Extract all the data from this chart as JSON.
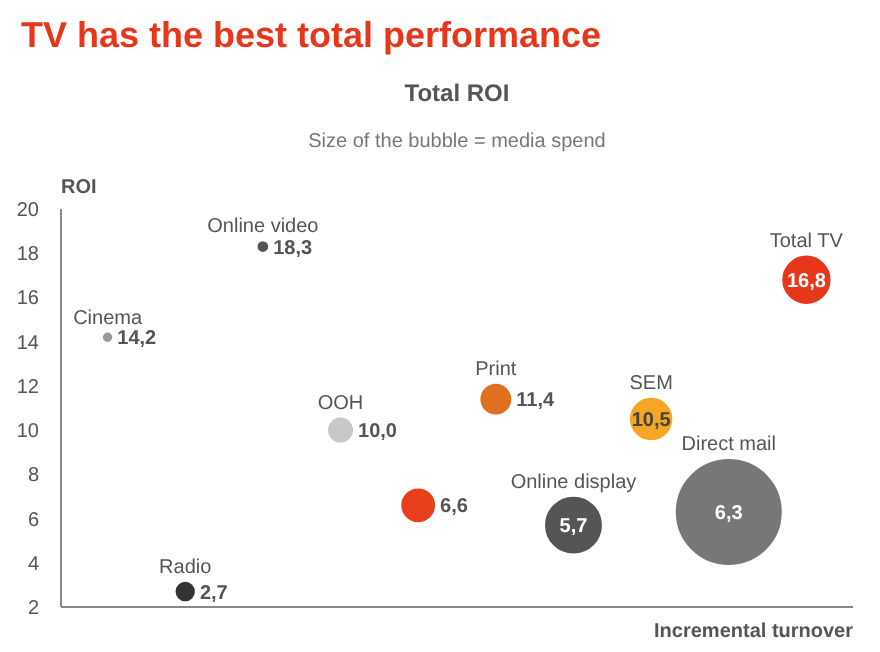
{
  "chart_data": {
    "type": "bubble",
    "title": "TV has the best total performance",
    "subtitle": "Total ROI",
    "annotations": [
      "Size of the bubble = media spend"
    ],
    "ylabel": "ROI",
    "xlabel": "Incremental turnover",
    "categories": [
      null,
      null,
      null,
      null,
      null,
      null,
      null,
      null,
      null,
      null
    ],
    "ylim": [
      2,
      20
    ],
    "yticks": [
      2,
      4,
      6,
      8,
      10,
      12,
      14,
      16,
      18,
      20
    ],
    "tick_labels": "y",
    "grid": false,
    "data_labels": true,
    "series": [
      {
        "name": "Cinema",
        "color": "#999999",
        "values": [
          14.2,
          null,
          null,
          null,
          null,
          null,
          null,
          null,
          null,
          null
        ],
        "sizes": [
          0.005,
          null,
          null,
          null,
          null,
          null,
          null,
          null,
          null,
          null
        ],
        "value_labels": [
          "14,2",
          null,
          null,
          null,
          null,
          null,
          null,
          null,
          null,
          null
        ]
      },
      {
        "name": "Radio",
        "color": "#333333",
        "values": [
          null,
          2.7,
          null,
          null,
          null,
          null,
          null,
          null,
          null,
          null
        ],
        "sizes": [
          null,
          0.028,
          null,
          null,
          null,
          null,
          null,
          null,
          null,
          null
        ],
        "value_labels": [
          null,
          "2,7",
          null,
          null,
          null,
          null,
          null,
          null,
          null,
          null
        ]
      },
      {
        "name": "Online video",
        "color": "#555555",
        "values": [
          null,
          null,
          18.3,
          null,
          null,
          null,
          null,
          null,
          null,
          null
        ],
        "sizes": [
          null,
          null,
          0.007,
          null,
          null,
          null,
          null,
          null,
          null,
          null
        ],
        "value_labels": [
          null,
          null,
          "18,3",
          null,
          null,
          null,
          null,
          null,
          null,
          null
        ]
      },
      {
        "name": "OOH",
        "color": "#c8c8c8",
        "values": [
          null,
          null,
          null,
          10.0,
          null,
          null,
          null,
          null,
          null,
          null
        ],
        "sizes": [
          null,
          null,
          null,
          0.049,
          null,
          null,
          null,
          null,
          null,
          null
        ],
        "value_labels": [
          null,
          null,
          null,
          "10,0",
          null,
          null,
          null,
          null,
          null,
          null
        ]
      },
      {
        "color": "#e8401c",
        "values": [
          null,
          null,
          null,
          null,
          6.6,
          null,
          null,
          null,
          null,
          null
        ],
        "sizes": [
          null,
          null,
          null,
          null,
          0.093,
          null,
          null,
          null,
          null,
          null
        ],
        "value_labels": [
          null,
          null,
          null,
          null,
          "6,6",
          null,
          null,
          null,
          null,
          null
        ]
      },
      {
        "name": "Print",
        "color": "#e07020",
        "values": [
          null,
          null,
          null,
          null,
          null,
          11.4,
          null,
          null,
          null,
          null
        ],
        "sizes": [
          null,
          null,
          null,
          null,
          null,
          0.077,
          null,
          null,
          null,
          null
        ],
        "value_labels": [
          null,
          null,
          null,
          null,
          null,
          "11,4",
          null,
          null,
          null,
          null
        ]
      },
      {
        "name": "Online display",
        "color": "#555555",
        "values": [
          null,
          null,
          null,
          null,
          null,
          null,
          5.7,
          null,
          null,
          null
        ],
        "sizes": [
          null,
          null,
          null,
          null,
          null,
          null,
          0.279,
          null,
          null,
          null
        ],
        "value_labels": [
          null,
          null,
          null,
          null,
          null,
          null,
          "5,7",
          null,
          null,
          null
        ]
      },
      {
        "name": "SEM",
        "color": "#f5a623",
        "values": [
          null,
          null,
          null,
          null,
          null,
          null,
          null,
          10.5,
          null,
          null
        ],
        "sizes": [
          null,
          null,
          null,
          null,
          null,
          null,
          null,
          0.151,
          null,
          null
        ],
        "value_labels": [
          null,
          null,
          null,
          null,
          null,
          null,
          null,
          "10,5",
          null,
          null
        ]
      },
      {
        "name": "Direct mail",
        "color": "#777777",
        "values": [
          null,
          null,
          null,
          null,
          null,
          null,
          null,
          null,
          6.3,
          null
        ],
        "sizes": [
          null,
          null,
          null,
          null,
          null,
          null,
          null,
          null,
          1,
          null
        ],
        "value_labels": [
          null,
          null,
          null,
          null,
          null,
          null,
          null,
          null,
          "6,3",
          null
        ]
      },
      {
        "name": "Total TV",
        "color": "#e8361a",
        "values": [
          null,
          null,
          null,
          null,
          null,
          null,
          null,
          null,
          null,
          16.8
        ],
        "sizes": [
          null,
          null,
          null,
          null,
          null,
          null,
          null,
          null,
          null,
          0.198
        ],
        "value_labels": [
          null,
          null,
          null,
          null,
          null,
          null,
          null,
          null,
          null,
          "16,8"
        ]
      }
    ]
  }
}
